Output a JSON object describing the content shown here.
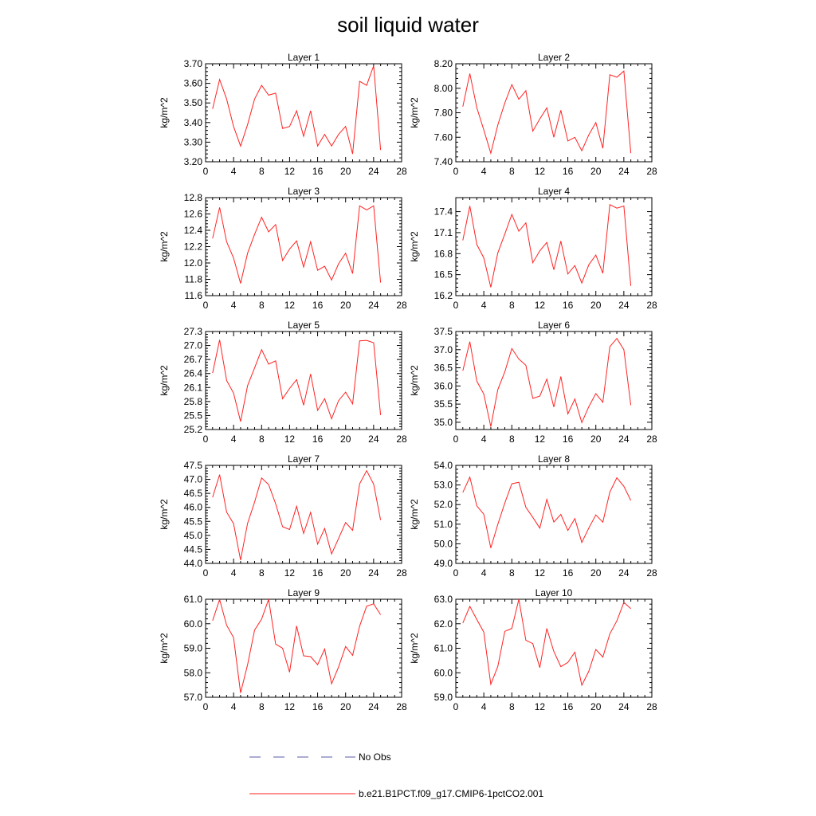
{
  "title": "soil liquid water",
  "legend": {
    "items": [
      {
        "label": "No Obs",
        "color": "#5a5aa8",
        "dash": true
      },
      {
        "label": "b.e21.B1PCT.f09_g17.CMIP6-1pctCO2.001",
        "color": "#ff2222",
        "dash": false
      }
    ]
  },
  "chart_data": [
    {
      "type": "line",
      "title": "Layer 1",
      "xlabel": "",
      "ylabel": "kg/m^2",
      "xlim": [
        0,
        28
      ],
      "ylim": [
        3.2,
        3.7
      ],
      "xticks": [
        0,
        4,
        8,
        12,
        16,
        20,
        24,
        28
      ],
      "yticks": [
        3.2,
        3.3,
        3.4,
        3.5,
        3.6,
        3.7
      ],
      "ytick_labels": [
        "3.20",
        "3.30",
        "3.40",
        "3.50",
        "3.60",
        "3.70"
      ],
      "series": [
        {
          "color": "#ff2222",
          "x": [
            1,
            2,
            3,
            4,
            5,
            6,
            7,
            8,
            9,
            10,
            11,
            12,
            13,
            14,
            15,
            16,
            17,
            18,
            19,
            20,
            21,
            22,
            23,
            24,
            25
          ],
          "y": [
            3.47,
            3.62,
            3.52,
            3.38,
            3.28,
            3.39,
            3.52,
            3.59,
            3.54,
            3.55,
            3.37,
            3.38,
            3.46,
            3.33,
            3.46,
            3.28,
            3.34,
            3.28,
            3.34,
            3.38,
            3.24,
            3.61,
            3.59,
            3.69,
            3.26
          ]
        }
      ]
    },
    {
      "type": "line",
      "title": "Layer 2",
      "xlabel": "",
      "ylabel": "kg/m^2",
      "xlim": [
        0,
        28
      ],
      "ylim": [
        7.4,
        8.2
      ],
      "xticks": [
        0,
        4,
        8,
        12,
        16,
        20,
        24,
        28
      ],
      "yticks": [
        7.4,
        7.6,
        7.8,
        8.0,
        8.2
      ],
      "ytick_labels": [
        "7.40",
        "7.60",
        "7.80",
        "8.00",
        "8.20"
      ],
      "series": [
        {
          "color": "#ff2222",
          "x": [
            1,
            2,
            3,
            4,
            5,
            6,
            7,
            8,
            9,
            10,
            11,
            12,
            13,
            14,
            15,
            16,
            17,
            18,
            19,
            20,
            21,
            22,
            23,
            24,
            25
          ],
          "y": [
            7.85,
            8.12,
            7.84,
            7.66,
            7.47,
            7.7,
            7.88,
            8.03,
            7.91,
            7.98,
            7.65,
            7.75,
            7.84,
            7.6,
            7.82,
            7.57,
            7.6,
            7.49,
            7.62,
            7.72,
            7.51,
            8.11,
            8.09,
            8.14,
            7.47
          ]
        }
      ]
    },
    {
      "type": "line",
      "title": "Layer 3",
      "xlabel": "",
      "ylabel": "kg/m^2",
      "xlim": [
        0,
        28
      ],
      "ylim": [
        11.6,
        12.8
      ],
      "xticks": [
        0,
        4,
        8,
        12,
        16,
        20,
        24,
        28
      ],
      "yticks": [
        11.6,
        11.8,
        12.0,
        12.2,
        12.4,
        12.6,
        12.8
      ],
      "ytick_labels": [
        "11.6",
        "11.8",
        "12.0",
        "12.2",
        "12.4",
        "12.6",
        "12.8"
      ],
      "series": [
        {
          "color": "#ff2222",
          "x": [
            1,
            2,
            3,
            4,
            5,
            6,
            7,
            8,
            9,
            10,
            11,
            12,
            13,
            14,
            15,
            16,
            17,
            18,
            19,
            20,
            21,
            22,
            23,
            24,
            25
          ],
          "y": [
            12.3,
            12.68,
            12.26,
            12.06,
            11.75,
            12.12,
            12.35,
            12.56,
            12.38,
            12.47,
            12.03,
            12.17,
            12.27,
            11.95,
            12.26,
            11.91,
            11.96,
            11.79,
            11.99,
            12.12,
            11.87,
            12.7,
            12.65,
            12.7,
            11.76
          ]
        }
      ]
    },
    {
      "type": "line",
      "title": "Layer 4",
      "xlabel": "",
      "ylabel": "kg/m^2",
      "xlim": [
        0,
        28
      ],
      "ylim": [
        16.2,
        17.6
      ],
      "xticks": [
        0,
        4,
        8,
        12,
        16,
        20,
        24,
        28
      ],
      "yticks": [
        16.2,
        16.5,
        16.8,
        17.1,
        17.4
      ],
      "ytick_labels": [
        "16.2",
        "16.5",
        "16.8",
        "17.1",
        "17.4"
      ],
      "series": [
        {
          "color": "#ff2222",
          "x": [
            1,
            2,
            3,
            4,
            5,
            6,
            7,
            8,
            9,
            10,
            11,
            12,
            13,
            14,
            15,
            16,
            17,
            18,
            19,
            20,
            21,
            22,
            23,
            24,
            25
          ],
          "y": [
            16.99,
            17.48,
            16.93,
            16.74,
            16.32,
            16.81,
            17.08,
            17.36,
            17.12,
            17.24,
            16.67,
            16.84,
            16.96,
            16.57,
            16.98,
            16.51,
            16.63,
            16.38,
            16.64,
            16.78,
            16.52,
            17.5,
            17.45,
            17.48,
            16.34
          ]
        }
      ]
    },
    {
      "type": "line",
      "title": "Layer 5",
      "xlabel": "",
      "ylabel": "kg/m^2",
      "xlim": [
        0,
        28
      ],
      "ylim": [
        25.2,
        27.3
      ],
      "xticks": [
        0,
        4,
        8,
        12,
        16,
        20,
        24,
        28
      ],
      "yticks": [
        25.2,
        25.5,
        25.8,
        26.1,
        26.4,
        26.7,
        27.0,
        27.3
      ],
      "ytick_labels": [
        "25.2",
        "25.5",
        "25.8",
        "26.1",
        "26.4",
        "26.7",
        "27.0",
        "27.3"
      ],
      "series": [
        {
          "color": "#ff2222",
          "x": [
            1,
            2,
            3,
            4,
            5,
            6,
            7,
            8,
            9,
            10,
            11,
            12,
            13,
            14,
            15,
            16,
            17,
            18,
            19,
            20,
            21,
            22,
            23,
            24,
            25
          ],
          "y": [
            26.41,
            27.12,
            26.25,
            25.98,
            25.37,
            26.14,
            26.52,
            26.91,
            26.6,
            26.67,
            25.86,
            26.08,
            26.27,
            25.72,
            26.39,
            25.61,
            25.86,
            25.43,
            25.82,
            26.0,
            25.75,
            27.1,
            27.11,
            27.06,
            25.51
          ]
        }
      ]
    },
    {
      "type": "line",
      "title": "Layer 6",
      "xlabel": "",
      "ylabel": "kg/m^2",
      "xlim": [
        0,
        28
      ],
      "ylim": [
        34.8,
        37.5
      ],
      "xticks": [
        0,
        4,
        8,
        12,
        16,
        20,
        24,
        28
      ],
      "yticks": [
        35.0,
        35.5,
        36.0,
        36.5,
        37.0,
        37.5
      ],
      "ytick_labels": [
        "35.0",
        "35.5",
        "36.0",
        "36.5",
        "37.0",
        "37.5"
      ],
      "series": [
        {
          "color": "#ff2222",
          "x": [
            1,
            2,
            3,
            4,
            5,
            6,
            7,
            8,
            9,
            10,
            11,
            12,
            13,
            14,
            15,
            16,
            17,
            18,
            19,
            20,
            21,
            22,
            23,
            24,
            25
          ],
          "y": [
            36.42,
            37.22,
            36.13,
            35.78,
            34.88,
            35.9,
            36.39,
            37.03,
            36.74,
            36.57,
            35.66,
            35.72,
            36.19,
            35.42,
            36.26,
            35.23,
            35.64,
            34.99,
            35.43,
            35.79,
            35.55,
            37.08,
            37.31,
            37.0,
            35.47
          ]
        }
      ]
    },
    {
      "type": "line",
      "title": "Layer 7",
      "xlabel": "",
      "ylabel": "kg/m^2",
      "xlim": [
        0,
        28
      ],
      "ylim": [
        44.0,
        47.5
      ],
      "xticks": [
        0,
        4,
        8,
        12,
        16,
        20,
        24,
        28
      ],
      "yticks": [
        44.0,
        44.5,
        45.0,
        45.5,
        46.0,
        46.5,
        47.0,
        47.5
      ],
      "ytick_labels": [
        "44.0",
        "44.5",
        "45.0",
        "45.5",
        "46.0",
        "46.5",
        "47.0",
        "47.5"
      ],
      "series": [
        {
          "color": "#ff2222",
          "x": [
            1,
            2,
            3,
            4,
            5,
            6,
            7,
            8,
            9,
            10,
            11,
            12,
            13,
            14,
            15,
            16,
            17,
            18,
            19,
            20,
            21,
            22,
            23,
            24,
            25
          ],
          "y": [
            46.36,
            47.17,
            45.83,
            45.42,
            44.12,
            45.43,
            46.19,
            47.05,
            46.81,
            46.13,
            45.31,
            45.21,
            46.04,
            45.07,
            45.82,
            44.69,
            45.25,
            44.34,
            44.89,
            45.46,
            45.18,
            46.84,
            47.31,
            46.83,
            45.55
          ]
        }
      ]
    },
    {
      "type": "line",
      "title": "Layer 8",
      "xlabel": "",
      "ylabel": "kg/m^2",
      "xlim": [
        0,
        28
      ],
      "ylim": [
        49.0,
        54.0
      ],
      "xticks": [
        0,
        4,
        8,
        12,
        16,
        20,
        24,
        28
      ],
      "yticks": [
        49.0,
        50.0,
        51.0,
        52.0,
        53.0,
        54.0
      ],
      "ytick_labels": [
        "49.0",
        "50.0",
        "51.0",
        "52.0",
        "53.0",
        "54.0"
      ],
      "series": [
        {
          "color": "#ff2222",
          "x": [
            1,
            2,
            3,
            4,
            5,
            6,
            7,
            8,
            9,
            10,
            11,
            12,
            13,
            14,
            15,
            16,
            17,
            18,
            19,
            20,
            21,
            22,
            23,
            24,
            25
          ],
          "y": [
            52.62,
            53.4,
            51.93,
            51.51,
            49.79,
            50.99,
            52.08,
            53.06,
            53.14,
            51.86,
            51.35,
            50.8,
            52.27,
            51.11,
            51.5,
            50.68,
            51.29,
            50.07,
            50.8,
            51.47,
            51.1,
            52.64,
            53.37,
            52.93,
            52.21
          ]
        }
      ]
    },
    {
      "type": "line",
      "title": "Layer 9",
      "xlabel": "",
      "ylabel": "kg/m^2",
      "xlim": [
        0,
        28
      ],
      "ylim": [
        57.0,
        61.0
      ],
      "xticks": [
        0,
        4,
        8,
        12,
        16,
        20,
        24,
        28
      ],
      "yticks": [
        57.0,
        58.0,
        59.0,
        60.0,
        61.0
      ],
      "ytick_labels": [
        "57.0",
        "58.0",
        "59.0",
        "60.0",
        "61.0"
      ],
      "series": [
        {
          "color": "#ff2222",
          "x": [
            1,
            2,
            3,
            4,
            5,
            6,
            7,
            8,
            9,
            10,
            11,
            12,
            13,
            14,
            15,
            16,
            17,
            18,
            19,
            20,
            21,
            22,
            23,
            24,
            25
          ],
          "y": [
            60.13,
            60.99,
            59.94,
            59.44,
            57.18,
            58.33,
            59.74,
            60.19,
            61.0,
            59.17,
            59.0,
            58.02,
            59.91,
            58.69,
            58.66,
            58.33,
            58.97,
            57.55,
            58.24,
            59.07,
            58.71,
            59.9,
            60.72,
            60.81,
            60.37
          ]
        }
      ]
    },
    {
      "type": "line",
      "title": "Layer 10",
      "xlabel": "",
      "ylabel": "kg/m^2",
      "xlim": [
        0,
        28
      ],
      "ylim": [
        59.0,
        63.0
      ],
      "xticks": [
        0,
        4,
        8,
        12,
        16,
        20,
        24,
        28
      ],
      "yticks": [
        59.0,
        60.0,
        61.0,
        62.0,
        63.0
      ],
      "ytick_labels": [
        "59.0",
        "60.0",
        "61.0",
        "62.0",
        "63.0"
      ],
      "series": [
        {
          "color": "#ff2222",
          "x": [
            1,
            2,
            3,
            4,
            5,
            6,
            7,
            8,
            9,
            10,
            11,
            12,
            13,
            14,
            15,
            16,
            17,
            18,
            19,
            20,
            21,
            22,
            23,
            24,
            25
          ],
          "y": [
            62.03,
            62.71,
            62.17,
            61.66,
            59.53,
            60.26,
            61.69,
            61.81,
            63.0,
            61.33,
            61.19,
            60.21,
            61.81,
            60.87,
            60.25,
            60.42,
            60.84,
            59.49,
            60.06,
            60.95,
            60.64,
            61.59,
            62.12,
            62.87,
            62.62
          ]
        }
      ]
    }
  ]
}
